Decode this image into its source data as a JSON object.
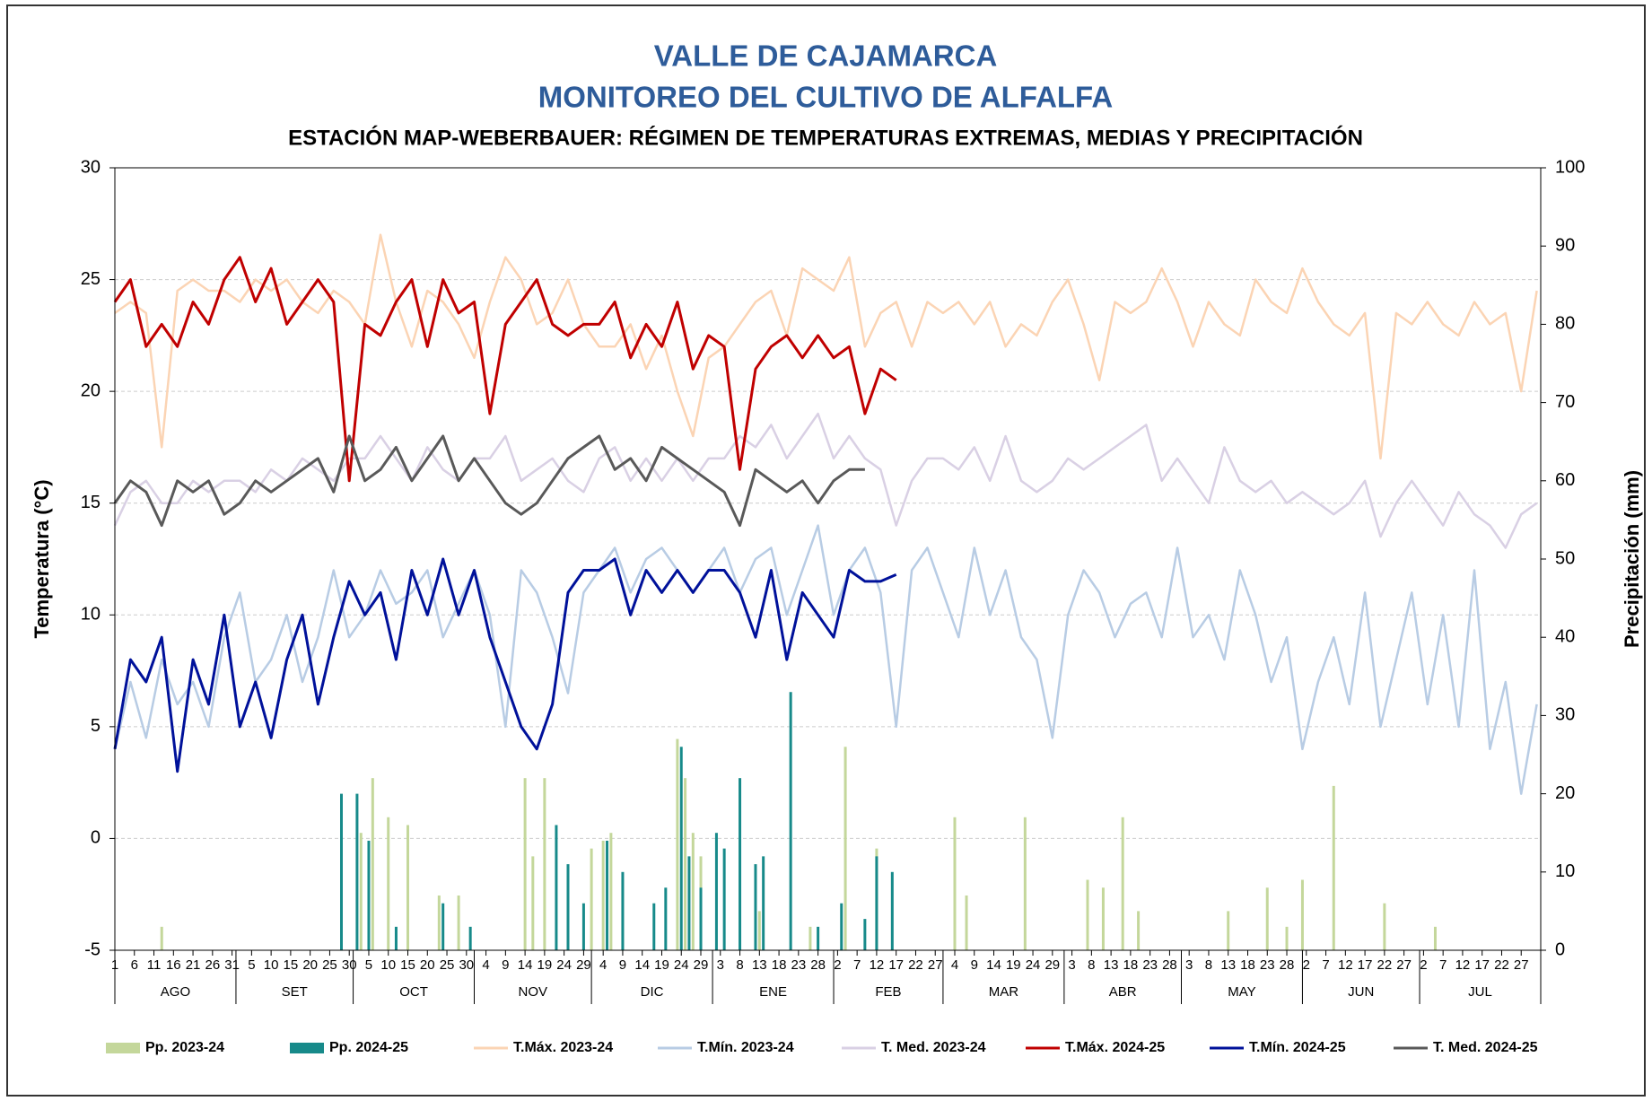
{
  "chart_data": {
    "type": "combo",
    "title": "VALLE DE CAJAMARCA",
    "subtitle": "MONITOREO DEL CULTIVO DE ALFALFA",
    "caption": "ESTACIÓN MAP-WEBERBAUER: RÉGIMEN DE TEMPERATURAS EXTREMAS, MEDIAS Y PRECIPITACIÓN",
    "ylabel": "Temperatura (°C)",
    "y2label": "Precipitación  (mm)",
    "ylim": [
      -5,
      30
    ],
    "yticks": [
      -5,
      0,
      5,
      10,
      15,
      20,
      25,
      30
    ],
    "y2lim": [
      0,
      100
    ],
    "y2ticks": [
      0,
      10,
      20,
      30,
      40,
      50,
      60,
      70,
      80,
      90,
      100
    ],
    "grid": true,
    "xlim": [
      0,
      365
    ],
    "xticks": [
      {
        "value": 0,
        "label": "1"
      },
      {
        "value": 5,
        "label": "6"
      },
      {
        "value": 10,
        "label": "11"
      },
      {
        "value": 15,
        "label": "16"
      },
      {
        "value": 20,
        "label": "21"
      },
      {
        "value": 25,
        "label": "26"
      },
      {
        "value": 30,
        "label": "31"
      },
      {
        "value": 35,
        "label": "5"
      },
      {
        "value": 40,
        "label": "10"
      },
      {
        "value": 45,
        "label": "15"
      },
      {
        "value": 50,
        "label": "20"
      },
      {
        "value": 55,
        "label": "25"
      },
      {
        "value": 60,
        "label": "30"
      },
      {
        "value": 65,
        "label": "5"
      },
      {
        "value": 70,
        "label": "10"
      },
      {
        "value": 75,
        "label": "15"
      },
      {
        "value": 80,
        "label": "20"
      },
      {
        "value": 85,
        "label": "25"
      },
      {
        "value": 90,
        "label": "30"
      },
      {
        "value": 95,
        "label": "4"
      },
      {
        "value": 100,
        "label": "9"
      },
      {
        "value": 105,
        "label": "14"
      },
      {
        "value": 110,
        "label": "19"
      },
      {
        "value": 115,
        "label": "24"
      },
      {
        "value": 120,
        "label": "29"
      },
      {
        "value": 125,
        "label": "4"
      },
      {
        "value": 130,
        "label": "9"
      },
      {
        "value": 135,
        "label": "14"
      },
      {
        "value": 140,
        "label": "19"
      },
      {
        "value": 145,
        "label": "24"
      },
      {
        "value": 150,
        "label": "29"
      },
      {
        "value": 155,
        "label": "3"
      },
      {
        "value": 160,
        "label": "8"
      },
      {
        "value": 165,
        "label": "13"
      },
      {
        "value": 170,
        "label": "18"
      },
      {
        "value": 175,
        "label": "23"
      },
      {
        "value": 180,
        "label": "28"
      },
      {
        "value": 185,
        "label": "2"
      },
      {
        "value": 190,
        "label": "7"
      },
      {
        "value": 195,
        "label": "12"
      },
      {
        "value": 200,
        "label": "17"
      },
      {
        "value": 205,
        "label": "22"
      },
      {
        "value": 210,
        "label": "27"
      },
      {
        "value": 215,
        "label": "4"
      },
      {
        "value": 220,
        "label": "9"
      },
      {
        "value": 225,
        "label": "14"
      },
      {
        "value": 230,
        "label": "19"
      },
      {
        "value": 235,
        "label": "24"
      },
      {
        "value": 240,
        "label": "29"
      },
      {
        "value": 245,
        "label": "3"
      },
      {
        "value": 250,
        "label": "8"
      },
      {
        "value": 255,
        "label": "13"
      },
      {
        "value": 260,
        "label": "18"
      },
      {
        "value": 265,
        "label": "23"
      },
      {
        "value": 270,
        "label": "28"
      },
      {
        "value": 275,
        "label": "3"
      },
      {
        "value": 280,
        "label": "8"
      },
      {
        "value": 285,
        "label": "13"
      },
      {
        "value": 290,
        "label": "18"
      },
      {
        "value": 295,
        "label": "23"
      },
      {
        "value": 300,
        "label": "28"
      },
      {
        "value": 305,
        "label": "2"
      },
      {
        "value": 310,
        "label": "7"
      },
      {
        "value": 315,
        "label": "12"
      },
      {
        "value": 320,
        "label": "17"
      },
      {
        "value": 325,
        "label": "22"
      },
      {
        "value": 330,
        "label": "27"
      },
      {
        "value": 335,
        "label": "2"
      },
      {
        "value": 340,
        "label": "7"
      },
      {
        "value": 345,
        "label": "12"
      },
      {
        "value": 350,
        "label": "17"
      },
      {
        "value": 355,
        "label": "22"
      },
      {
        "value": 360,
        "label": "27"
      }
    ],
    "months": [
      {
        "label": "AGO",
        "start": 0,
        "end": 31
      },
      {
        "label": "SET",
        "start": 31,
        "end": 61
      },
      {
        "label": "OCT",
        "start": 61,
        "end": 92
      },
      {
        "label": "NOV",
        "start": 92,
        "end": 122
      },
      {
        "label": "DIC",
        "start": 122,
        "end": 153
      },
      {
        "label": "ENE",
        "start": 153,
        "end": 184
      },
      {
        "label": "FEB",
        "start": 184,
        "end": 212
      },
      {
        "label": "MAR",
        "start": 212,
        "end": 243
      },
      {
        "label": "ABR",
        "start": 243,
        "end": 273
      },
      {
        "label": "MAY",
        "start": 273,
        "end": 304
      },
      {
        "label": "JUN",
        "start": 304,
        "end": 334
      },
      {
        "label": "JUL",
        "start": 334,
        "end": 365
      }
    ],
    "x": [
      0,
      4,
      8,
      12,
      16,
      20,
      24,
      28,
      32,
      36,
      40,
      44,
      48,
      52,
      56,
      60,
      64,
      68,
      72,
      76,
      80,
      84,
      88,
      92,
      96,
      100,
      104,
      108,
      112,
      116,
      120,
      124,
      128,
      132,
      136,
      140,
      144,
      148,
      152,
      156,
      160,
      164,
      168,
      172,
      176,
      180,
      184,
      188,
      192,
      196,
      200,
      204,
      208,
      212,
      216,
      220,
      224,
      228,
      232,
      236,
      240,
      244,
      248,
      252,
      256,
      260,
      264,
      268,
      272,
      276,
      280,
      284,
      288,
      292,
      296,
      300,
      304,
      308,
      312,
      316,
      320,
      324,
      328,
      332,
      336,
      340,
      344,
      348,
      352,
      356,
      360,
      364
    ],
    "series": [
      {
        "name": "Pp. 2023-24",
        "type": "bar",
        "axis": "y2",
        "color": "#c4d79b",
        "x": [
          12,
          63,
          66,
          70,
          75,
          83,
          88,
          105,
          107,
          110,
          122,
          125,
          127,
          130,
          144,
          146,
          148,
          150,
          165,
          178,
          187,
          195,
          215,
          218,
          233,
          249,
          253,
          258,
          262,
          285,
          295,
          300,
          304,
          312,
          325,
          338
        ],
        "values": [
          3,
          15,
          22,
          17,
          16,
          7,
          7,
          22,
          12,
          22,
          13,
          14,
          15,
          9,
          27,
          22,
          15,
          12,
          5,
          3,
          26,
          13,
          17,
          7,
          17,
          9,
          8,
          17,
          5,
          5,
          8,
          3,
          9,
          21,
          6,
          3
        ]
      },
      {
        "name": "Pp. 2024-25",
        "type": "bar",
        "axis": "y2",
        "color": "#178a8a",
        "x": [
          58,
          62,
          65,
          72,
          84,
          91,
          113,
          116,
          120,
          126,
          130,
          138,
          141,
          145,
          147,
          150,
          154,
          156,
          160,
          164,
          166,
          173,
          180,
          186,
          192,
          195,
          199
        ],
        "values": [
          20,
          20,
          14,
          3,
          6,
          3,
          16,
          11,
          6,
          14,
          10,
          6,
          8,
          26,
          12,
          8,
          15,
          13,
          22,
          11,
          12,
          33,
          3,
          6,
          4,
          12,
          10
        ]
      },
      {
        "name": "T.Máx. 2023-24",
        "type": "line",
        "color": "#fbd4b4",
        "values": [
          23.5,
          24,
          23.5,
          17.5,
          24.5,
          25,
          24.5,
          24.5,
          24,
          25,
          24.5,
          25,
          24,
          23.5,
          24.5,
          24,
          23,
          27,
          24,
          22,
          24.5,
          24,
          23,
          21.5,
          24,
          26,
          25,
          23,
          23.5,
          25,
          23,
          22,
          22,
          23,
          21,
          22.5,
          20,
          18,
          21.5,
          22,
          23,
          24,
          24.5,
          22.5,
          25.5,
          25,
          24.5,
          26,
          22,
          23.5,
          24,
          22,
          24,
          23.5,
          24,
          23,
          24,
          22,
          23,
          22.5,
          24,
          25,
          23,
          20.5,
          24,
          23.5,
          24,
          25.5,
          24,
          22,
          24,
          23,
          22.5,
          25,
          24,
          23.5,
          25.5,
          24,
          23,
          22.5,
          23.5,
          17,
          23.5,
          23,
          24,
          23,
          22.5,
          24,
          23,
          23.5,
          20,
          24.5
        ]
      },
      {
        "name": "T.Mín. 2023-24",
        "type": "line",
        "color": "#b8cce4",
        "values": [
          4,
          7,
          4.5,
          8,
          6,
          7,
          5,
          9,
          11,
          7,
          8,
          10,
          7,
          9,
          12,
          9,
          10,
          12,
          10.5,
          11,
          12,
          9,
          10.5,
          12,
          10,
          5,
          12,
          11,
          9,
          6.5,
          11,
          12,
          13,
          11,
          12.5,
          13,
          12,
          11,
          12,
          13,
          11,
          12.5,
          13,
          10,
          12,
          14,
          10,
          12,
          13,
          11,
          5,
          12,
          13,
          11,
          9,
          13,
          10,
          12,
          9,
          8,
          4.5,
          10,
          12,
          11,
          9,
          10.5,
          11,
          9,
          13,
          9,
          10,
          8,
          12,
          10,
          7,
          9,
          4,
          7,
          9,
          6,
          11,
          5,
          8,
          11,
          6,
          10,
          5,
          12,
          4,
          7,
          2,
          6
        ]
      },
      {
        "name": "T. Med. 2023-24",
        "type": "line",
        "color": "#d9d0e4",
        "values": [
          14,
          15.5,
          16,
          15,
          15,
          16,
          15.5,
          16,
          16,
          15.5,
          16.5,
          16,
          17,
          16.5,
          16,
          17,
          17,
          18,
          17,
          16,
          17.5,
          16.5,
          16,
          17,
          17,
          18,
          16,
          16.5,
          17,
          16,
          15.5,
          17,
          17.5,
          16,
          17,
          16,
          17,
          16,
          17,
          17,
          18,
          17.5,
          18.5,
          17,
          18,
          19,
          17,
          18,
          17,
          16.5,
          14,
          16,
          17,
          17,
          16.5,
          17.5,
          16,
          18,
          16,
          15.5,
          16,
          17,
          16.5,
          17,
          17.5,
          18,
          18.5,
          16,
          17,
          16,
          15,
          17.5,
          16,
          15.5,
          16,
          15,
          15.5,
          15,
          14.5,
          15,
          16,
          13.5,
          15,
          16,
          15,
          14,
          15.5,
          14.5,
          14,
          13,
          14.5,
          15
        ]
      },
      {
        "name": "T.Máx. 2024-25",
        "type": "line",
        "color": "#c00000",
        "width": 3,
        "values": [
          24,
          25,
          22,
          23,
          22,
          24,
          23,
          25,
          26,
          24,
          25.5,
          23,
          24,
          25,
          24,
          16,
          23,
          22.5,
          24,
          25,
          22,
          25,
          23.5,
          24,
          19,
          23,
          24,
          25,
          23,
          22.5,
          23,
          23,
          24,
          21.5,
          23,
          22,
          24,
          21,
          22.5,
          22,
          16.5,
          21,
          22,
          22.5,
          21.5,
          22.5,
          21.5,
          22,
          19,
          21,
          20.5,
          null,
          null,
          null,
          null,
          null,
          null,
          null,
          null,
          null,
          null,
          null,
          null,
          null,
          null,
          null,
          null,
          null,
          null,
          null,
          null,
          null,
          null,
          null,
          null,
          null,
          null,
          null,
          null,
          null,
          null,
          null,
          null,
          null,
          null,
          null,
          null,
          null,
          null,
          null,
          null,
          null
        ]
      },
      {
        "name": "T.Mín. 2024-25",
        "type": "line",
        "color": "#00119a",
        "width": 3,
        "values": [
          4,
          8,
          7,
          9,
          3,
          8,
          6,
          10,
          5,
          7,
          4.5,
          8,
          10,
          6,
          9,
          11.5,
          10,
          11,
          8,
          12,
          10,
          12.5,
          10,
          12,
          9,
          7,
          5,
          4,
          6,
          11,
          12,
          12,
          12.5,
          10,
          12,
          11,
          12,
          11,
          12,
          12,
          11,
          9,
          12,
          8,
          11,
          10,
          9,
          12,
          11.5,
          11.5,
          11.8,
          null,
          null,
          null,
          null,
          null,
          null,
          null,
          null,
          null,
          null,
          null,
          null,
          null,
          null,
          null,
          null,
          null,
          null,
          null,
          null,
          null,
          null,
          null,
          null,
          null,
          null,
          null,
          null,
          null,
          null,
          null,
          null,
          null,
          null,
          null,
          null,
          null,
          null,
          null,
          null,
          null
        ]
      },
      {
        "name": "T. Med. 2024-25",
        "type": "line",
        "color": "#595959",
        "width": 3,
        "values": [
          15,
          16,
          15.5,
          14,
          16,
          15.5,
          16,
          14.5,
          15,
          16,
          15.5,
          16,
          16.5,
          17,
          15.5,
          18,
          16,
          16.5,
          17.5,
          16,
          17,
          18,
          16,
          17,
          16,
          15,
          14.5,
          15,
          16,
          17,
          17.5,
          18,
          16.5,
          17,
          16,
          17.5,
          17,
          16.5,
          16,
          15.5,
          14,
          16.5,
          16,
          15.5,
          16,
          15,
          16,
          16.5,
          16.5,
          null,
          null,
          null,
          null,
          null,
          null,
          null,
          null,
          null,
          null,
          null,
          null,
          null,
          null,
          null,
          null,
          null,
          null,
          null,
          null,
          null,
          null,
          null,
          null,
          null,
          null,
          null,
          null,
          null,
          null,
          null,
          null,
          null,
          null,
          null,
          null,
          null,
          null,
          null,
          null,
          null,
          null,
          null
        ]
      }
    ]
  }
}
